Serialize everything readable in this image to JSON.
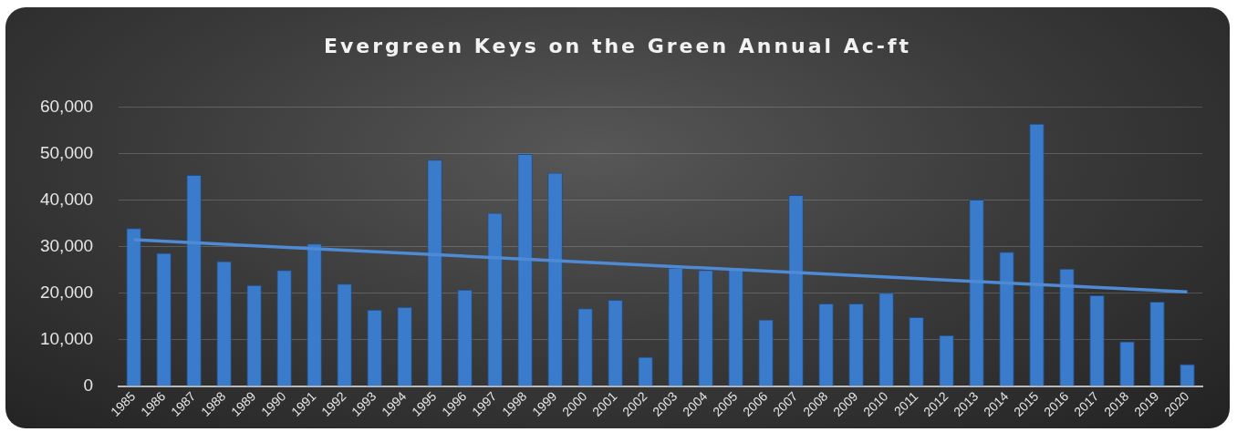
{
  "chart_data": {
    "type": "bar",
    "title": "Evergreen Keys on the Green Annual Ac-ft",
    "categories": [
      "1985",
      "1986",
      "1987",
      "1988",
      "1989",
      "1990",
      "1991",
      "1992",
      "1993",
      "1994",
      "1995",
      "1996",
      "1997",
      "1998",
      "1999",
      "2000",
      "2001",
      "2002",
      "2003",
      "2004",
      "2005",
      "2006",
      "2007",
      "2008",
      "2009",
      "2010",
      "2011",
      "2012",
      "2013",
      "2014",
      "2015",
      "2016",
      "2017",
      "2018",
      "2019",
      "2020"
    ],
    "series": [
      {
        "color": "#3b7bcc",
        "values": [
          34000,
          28700,
          45400,
          26900,
          21800,
          25000,
          30700,
          22100,
          16500,
          17100,
          48700,
          20800,
          37300,
          49900,
          45900,
          16800,
          18600,
          6400,
          25500,
          25000,
          25500,
          14400,
          41100,
          17800,
          17800,
          20100,
          14900,
          11000,
          40100,
          28900,
          56400,
          25300,
          19600,
          9700,
          18200,
          4800
        ]
      },
      {
        "type": "line",
        "color": "#4f8ad4",
        "values": [
          31500,
          null,
          null,
          null,
          null,
          null,
          null,
          null,
          null,
          null,
          null,
          null,
          null,
          null,
          null,
          null,
          null,
          null,
          null,
          null,
          null,
          null,
          null,
          null,
          null,
          null,
          null,
          null,
          null,
          null,
          null,
          null,
          null,
          null,
          null,
          20300
        ]
      }
    ],
    "ylim": [
      0,
      60000
    ],
    "yticks": [
      {
        "value": 0,
        "label": "0"
      },
      {
        "value": 10000,
        "label": "10,000"
      },
      {
        "value": 20000,
        "label": "20,000"
      },
      {
        "value": 30000,
        "label": "30,000"
      },
      {
        "value": 40000,
        "label": "40,000"
      },
      {
        "value": 50000,
        "label": "50,000"
      },
      {
        "value": 60000,
        "label": "60,000"
      }
    ],
    "grid": "y",
    "legend": false,
    "marker": "none"
  }
}
